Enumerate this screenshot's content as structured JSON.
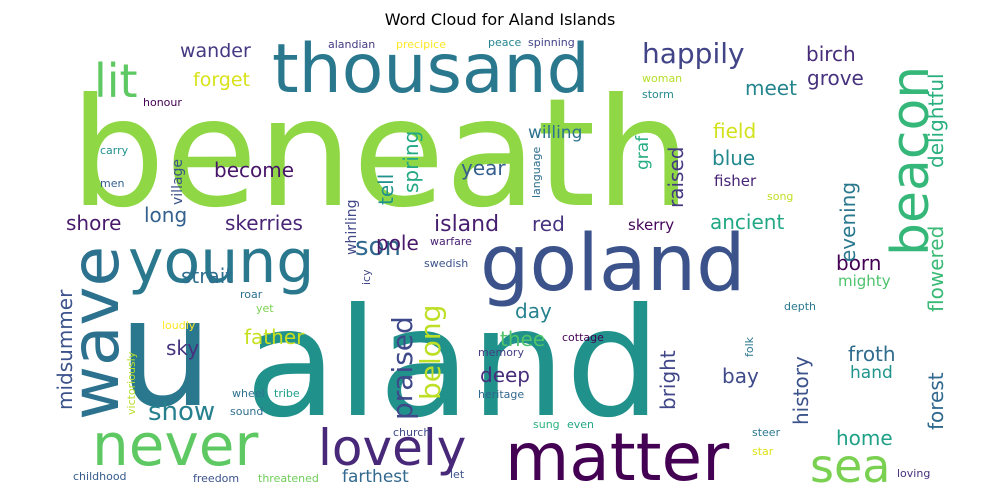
{
  "chart_data": {
    "type": "wordcloud",
    "title": "Word Cloud for Aland Islands",
    "words": [
      {
        "text": "beneath",
        "weight": 1.0,
        "color": "#8fd744"
      },
      {
        "text": "aland",
        "weight": 0.98,
        "color": "#21918c"
      },
      {
        "text": "u",
        "weight": 0.96,
        "color": "#2a788e"
      },
      {
        "text": "thousand",
        "weight": 0.55,
        "color": "#2a788e"
      },
      {
        "text": "matter",
        "weight": 0.52,
        "color": "#440154"
      },
      {
        "text": "goland",
        "weight": 0.52,
        "color": "#3b528b"
      },
      {
        "text": "wave",
        "weight": 0.5,
        "color": "#2c728e"
      },
      {
        "text": "never",
        "weight": 0.45,
        "color": "#5ec962"
      },
      {
        "text": "young",
        "weight": 0.42,
        "color": "#2a788e"
      },
      {
        "text": "lovely",
        "weight": 0.4,
        "color": "#482878"
      },
      {
        "text": "beacon",
        "weight": 0.4,
        "color": "#35b779"
      },
      {
        "text": "sea",
        "weight": 0.38,
        "color": "#7ad151"
      },
      {
        "text": "lit",
        "weight": 0.35,
        "color": "#5ec962"
      },
      {
        "text": "happily",
        "weight": 0.25,
        "color": "#414487"
      },
      {
        "text": "praised",
        "weight": 0.22,
        "color": "#3e4989"
      },
      {
        "text": "belong",
        "weight": 0.22,
        "color": "#bddf26"
      },
      {
        "text": "show",
        "weight": 0.2,
        "color": "#27808e"
      },
      {
        "text": "son",
        "weight": 0.2,
        "color": "#31688e"
      },
      {
        "text": "forest",
        "weight": 0.18,
        "color": "#31688e"
      },
      {
        "text": "raised",
        "weight": 0.18,
        "color": "#443983"
      },
      {
        "text": "history",
        "weight": 0.17,
        "color": "#3b528b"
      },
      {
        "text": "home",
        "weight": 0.17,
        "color": "#1fa187"
      },
      {
        "text": "island",
        "weight": 0.17,
        "color": "#481f70"
      },
      {
        "text": "deep",
        "weight": 0.17,
        "color": "#472d7b"
      },
      {
        "text": "strait",
        "weight": 0.17,
        "color": "#2e6e8e"
      },
      {
        "text": "become",
        "weight": 0.17,
        "color": "#481668"
      },
      {
        "text": "father",
        "weight": 0.17,
        "color": "#c8e020"
      },
      {
        "text": "meet",
        "weight": 0.17,
        "color": "#25858e"
      },
      {
        "text": "grove",
        "weight": 0.17,
        "color": "#46327e"
      },
      {
        "text": "birch",
        "weight": 0.16,
        "color": "#472c7a"
      },
      {
        "text": "blue",
        "weight": 0.16,
        "color": "#23898e"
      },
      {
        "text": "field",
        "weight": 0.16,
        "color": "#d2e21b"
      },
      {
        "text": "spring",
        "weight": 0.15,
        "color": "#22a884"
      },
      {
        "text": "tell",
        "weight": 0.15,
        "color": "#20928c"
      },
      {
        "text": "bright",
        "weight": 0.15,
        "color": "#404688"
      },
      {
        "text": "delightful",
        "weight": 0.15,
        "color": "#2ab07f"
      },
      {
        "text": "flowered",
        "weight": 0.15,
        "color": "#3aba76"
      },
      {
        "text": "midsummer",
        "weight": 0.15,
        "color": "#3b528b"
      },
      {
        "text": "year",
        "weight": 0.15,
        "color": "#355f8d"
      },
      {
        "text": "ancient",
        "weight": 0.15,
        "color": "#22a884"
      },
      {
        "text": "skerries",
        "weight": 0.15,
        "color": "#482576"
      },
      {
        "text": "shore",
        "weight": 0.15,
        "color": "#481a6c"
      },
      {
        "text": "pole",
        "weight": 0.15,
        "color": "#48186a"
      },
      {
        "text": "red",
        "weight": 0.15,
        "color": "#46337f"
      },
      {
        "text": "long",
        "weight": 0.15,
        "color": "#34618d"
      },
      {
        "text": "sky",
        "weight": 0.15,
        "color": "#46327e"
      },
      {
        "text": "day",
        "weight": 0.15,
        "color": "#26828e"
      },
      {
        "text": "thee",
        "weight": 0.15,
        "color": "#50c46a"
      },
      {
        "text": "bay",
        "weight": 0.15,
        "color": "#3e4a89"
      },
      {
        "text": "born",
        "weight": 0.15,
        "color": "#440154"
      },
      {
        "text": "froth",
        "weight": 0.15,
        "color": "#2f6c8e"
      },
      {
        "text": "evening",
        "weight": 0.15,
        "color": "#2a788e"
      },
      {
        "text": "forget",
        "weight": 0.14,
        "color": "#d8e219"
      },
      {
        "text": "wander",
        "weight": 0.14,
        "color": "#453882"
      },
      {
        "text": "farthest",
        "weight": 0.13,
        "color": "#31688e"
      },
      {
        "text": "graf",
        "weight": 0.13,
        "color": "#26ad81"
      },
      {
        "text": "hand",
        "weight": 0.13,
        "color": "#1f958b"
      },
      {
        "text": "willing",
        "weight": 0.12,
        "color": "#2c738e"
      },
      {
        "text": "fisher",
        "weight": 0.12,
        "color": "#482475"
      },
      {
        "text": "mighty",
        "weight": 0.11,
        "color": "#4ec36b"
      },
      {
        "text": "skerry",
        "weight": 0.11,
        "color": "#450559"
      },
      {
        "text": "whirling",
        "weight": 0.1,
        "color": "#3f4788"
      },
      {
        "text": "village",
        "weight": 0.1,
        "color": "#3b528b"
      },
      {
        "text": "carry",
        "weight": 0.08,
        "color": "#21918c"
      },
      {
        "text": "honour",
        "weight": 0.08,
        "color": "#440154"
      },
      {
        "text": "men",
        "weight": 0.08,
        "color": "#34618d"
      },
      {
        "text": "storm",
        "weight": 0.08,
        "color": "#23898e"
      },
      {
        "text": "woman",
        "weight": 0.08,
        "color": "#b5de2b"
      },
      {
        "text": "language",
        "weight": 0.07,
        "color": "#2e6e8e"
      },
      {
        "text": "song",
        "weight": 0.07,
        "color": "#c0df25"
      },
      {
        "text": "icy",
        "weight": 0.08,
        "color": "#414487"
      },
      {
        "text": "swedish",
        "weight": 0.08,
        "color": "#3b528b"
      },
      {
        "text": "warfare",
        "weight": 0.08,
        "color": "#482173"
      },
      {
        "text": "roar",
        "weight": 0.08,
        "color": "#2c728e"
      },
      {
        "text": "yet",
        "weight": 0.08,
        "color": "#7ad151"
      },
      {
        "text": "loudly",
        "weight": 0.08,
        "color": "#fde725"
      },
      {
        "text": "victoriously",
        "weight": 0.08,
        "color": "#b8de29"
      },
      {
        "text": "memory",
        "weight": 0.08,
        "color": "#433e85"
      },
      {
        "text": "cottage",
        "weight": 0.08,
        "color": "#440154"
      },
      {
        "text": "folk",
        "weight": 0.08,
        "color": "#2a788e"
      },
      {
        "text": "depth",
        "weight": 0.08,
        "color": "#2a788e"
      },
      {
        "text": "heritage",
        "weight": 0.08,
        "color": "#31688e"
      },
      {
        "text": "wheel",
        "weight": 0.08,
        "color": "#2c728e"
      },
      {
        "text": "tribe",
        "weight": 0.08,
        "color": "#1f9e89"
      },
      {
        "text": "sound",
        "weight": 0.08,
        "color": "#2e6f8e"
      },
      {
        "text": "steer",
        "weight": 0.08,
        "color": "#2a788e"
      },
      {
        "text": "star",
        "weight": 0.08,
        "color": "#dde318"
      },
      {
        "text": "church",
        "weight": 0.08,
        "color": "#3e4989"
      },
      {
        "text": "sung",
        "weight": 0.08,
        "color": "#2db27d"
      },
      {
        "text": "even",
        "weight": 0.08,
        "color": "#22a884"
      },
      {
        "text": "let",
        "weight": 0.08,
        "color": "#3b528b"
      },
      {
        "text": "childhood",
        "weight": 0.08,
        "color": "#365c8d"
      },
      {
        "text": "freedom",
        "weight": 0.08,
        "color": "#3b528b"
      },
      {
        "text": "threatened",
        "weight": 0.08,
        "color": "#6ece58"
      },
      {
        "text": "loving",
        "weight": 0.08,
        "color": "#472d7b"
      },
      {
        "text": "alandian",
        "weight": 0.07,
        "color": "#443a83"
      },
      {
        "text": "precipice",
        "weight": 0.07,
        "color": "#fde725"
      },
      {
        "text": "peace",
        "weight": 0.07,
        "color": "#25858e"
      },
      {
        "text": "spinning",
        "weight": 0.07,
        "color": "#414487"
      }
    ]
  }
}
